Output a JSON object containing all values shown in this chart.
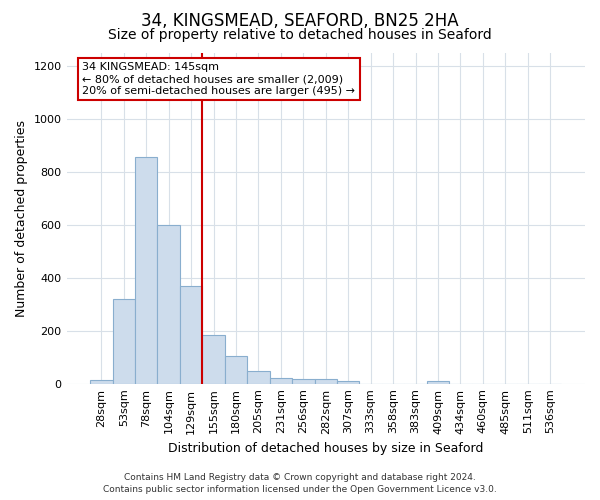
{
  "title1": "34, KINGSMEAD, SEAFORD, BN25 2HA",
  "title2": "Size of property relative to detached houses in Seaford",
  "xlabel": "Distribution of detached houses by size in Seaford",
  "ylabel": "Number of detached properties",
  "categories": [
    "28sqm",
    "53sqm",
    "78sqm",
    "104sqm",
    "129sqm",
    "155sqm",
    "180sqm",
    "205sqm",
    "231sqm",
    "256sqm",
    "282sqm",
    "307sqm",
    "333sqm",
    "358sqm",
    "383sqm",
    "409sqm",
    "434sqm",
    "460sqm",
    "485sqm",
    "511sqm",
    "536sqm"
  ],
  "values": [
    15,
    320,
    855,
    600,
    370,
    185,
    105,
    48,
    23,
    18,
    18,
    10,
    0,
    0,
    0,
    12,
    0,
    0,
    0,
    0,
    0
  ],
  "bar_color": "#cddcec",
  "bar_edge_color": "#89aece",
  "vline_color": "#cc0000",
  "vline_index": 5,
  "annotation_text": "34 KINGSMEAD: 145sqm\n← 80% of detached houses are smaller (2,009)\n20% of semi-detached houses are larger (495) →",
  "annotation_box_facecolor": "#ffffff",
  "annotation_box_edgecolor": "#cc0000",
  "footer1": "Contains HM Land Registry data © Crown copyright and database right 2024.",
  "footer2": "Contains public sector information licensed under the Open Government Licence v3.0.",
  "ylim": [
    0,
    1250
  ],
  "yticks": [
    0,
    200,
    400,
    600,
    800,
    1000,
    1200
  ],
  "background_color": "#ffffff",
  "grid_color": "#d8e0e8",
  "title_fontsize": 12,
  "subtitle_fontsize": 10,
  "ylabel_fontsize": 9,
  "xlabel_fontsize": 9,
  "tick_fontsize": 8,
  "annot_fontsize": 8,
  "footer_fontsize": 6.5
}
